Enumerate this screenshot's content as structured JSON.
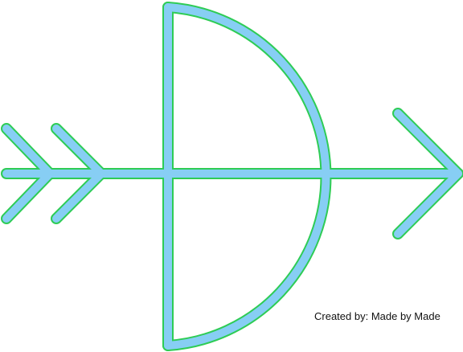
{
  "credit": "Created by: Made by Made",
  "icon": "bow-and-arrow-icon",
  "colors": {
    "fill": "#87cef4",
    "outline": "#2ecc55"
  }
}
